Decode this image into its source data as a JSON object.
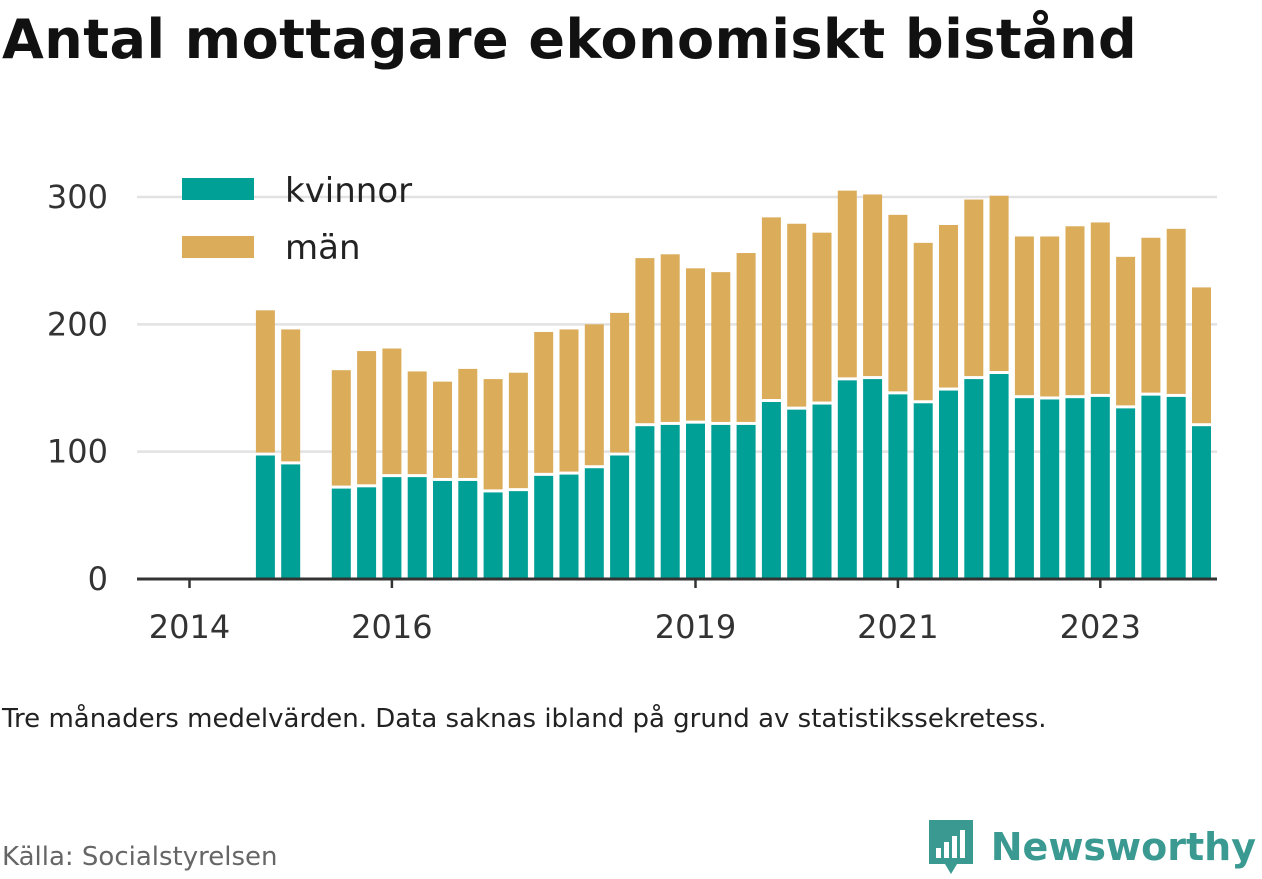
{
  "title": "Antal mottagare ekonomiskt bistånd",
  "note": "Tre månaders medelvärden. Data saknas ibland på grund av statistikssekretess.",
  "source": "Källa: Socialstyrelsen",
  "brand": "Newsworthy",
  "colors": {
    "kvinnor": "#00a096",
    "man": "#dbac5a",
    "grid": "#e2e2e2",
    "axis": "#333333"
  },
  "chart_data": {
    "type": "bar",
    "stacked": true,
    "legend": [
      {
        "key": "kvinnor",
        "label": "kvinnor"
      },
      {
        "key": "man",
        "label": "män"
      }
    ],
    "legend_position": "top-left",
    "grid": true,
    "ylim": [
      0,
      300
    ],
    "yticks": [
      0,
      100,
      200,
      300
    ],
    "xticks": [
      {
        "label": "2014",
        "slot": 0
      },
      {
        "label": "2016",
        "slot": 8
      },
      {
        "label": "2019",
        "slot": 20
      },
      {
        "label": "2021",
        "slot": 28
      },
      {
        "label": "2023",
        "slot": 36
      }
    ],
    "slot_count": 44,
    "bars": [
      {
        "slot": 3,
        "kvinnor": 97,
        "man": 114
      },
      {
        "slot": 4,
        "kvinnor": 90,
        "man": 106
      },
      {
        "slot": 6,
        "kvinnor": 71,
        "man": 93
      },
      {
        "slot": 7,
        "kvinnor": 72,
        "man": 107
      },
      {
        "slot": 8,
        "kvinnor": 80,
        "man": 101
      },
      {
        "slot": 9,
        "kvinnor": 80,
        "man": 83
      },
      {
        "slot": 10,
        "kvinnor": 77,
        "man": 78
      },
      {
        "slot": 11,
        "kvinnor": 77,
        "man": 88
      },
      {
        "slot": 12,
        "kvinnor": 68,
        "man": 89
      },
      {
        "slot": 13,
        "kvinnor": 69,
        "man": 93
      },
      {
        "slot": 14,
        "kvinnor": 81,
        "man": 113
      },
      {
        "slot": 15,
        "kvinnor": 82,
        "man": 114
      },
      {
        "slot": 16,
        "kvinnor": 87,
        "man": 113
      },
      {
        "slot": 17,
        "kvinnor": 97,
        "man": 112
      },
      {
        "slot": 18,
        "kvinnor": 120,
        "man": 132
      },
      {
        "slot": 19,
        "kvinnor": 121,
        "man": 134
      },
      {
        "slot": 20,
        "kvinnor": 122,
        "man": 122
      },
      {
        "slot": 21,
        "kvinnor": 121,
        "man": 120
      },
      {
        "slot": 22,
        "kvinnor": 121,
        "man": 135
      },
      {
        "slot": 23,
        "kvinnor": 139,
        "man": 145
      },
      {
        "slot": 24,
        "kvinnor": 133,
        "man": 146
      },
      {
        "slot": 25,
        "kvinnor": 137,
        "man": 135
      },
      {
        "slot": 26,
        "kvinnor": 156,
        "man": 149
      },
      {
        "slot": 27,
        "kvinnor": 157,
        "man": 145
      },
      {
        "slot": 28,
        "kvinnor": 145,
        "man": 141
      },
      {
        "slot": 29,
        "kvinnor": 138,
        "man": 126
      },
      {
        "slot": 30,
        "kvinnor": 148,
        "man": 130
      },
      {
        "slot": 31,
        "kvinnor": 157,
        "man": 141
      },
      {
        "slot": 32,
        "kvinnor": 161,
        "man": 140
      },
      {
        "slot": 33,
        "kvinnor": 142,
        "man": 127
      },
      {
        "slot": 34,
        "kvinnor": 141,
        "man": 128
      },
      {
        "slot": 35,
        "kvinnor": 142,
        "man": 135
      },
      {
        "slot": 36,
        "kvinnor": 143,
        "man": 137
      },
      {
        "slot": 37,
        "kvinnor": 134,
        "man": 119
      },
      {
        "slot": 38,
        "kvinnor": 144,
        "man": 124
      },
      {
        "slot": 39,
        "kvinnor": 143,
        "man": 132
      },
      {
        "slot": 40,
        "kvinnor": 120,
        "man": 109
      }
    ]
  }
}
